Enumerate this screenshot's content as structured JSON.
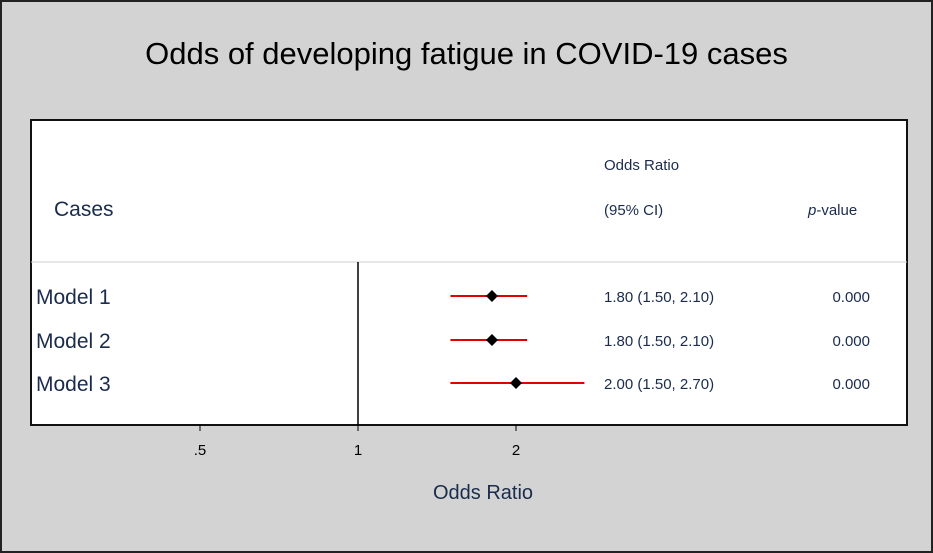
{
  "chart_data": {
    "type": "forest",
    "title": "Odds of developing fatigue in COVID-19 cases",
    "xlabel": "Odds Ratio",
    "x_scale": "log",
    "xlim": [
      0.3,
      2.6
    ],
    "reference_line": 1,
    "x_ticks": [
      {
        "value": 0.5,
        "label": ".5"
      },
      {
        "value": 1,
        "label": "1"
      },
      {
        "value": 2,
        "label": "2"
      }
    ],
    "headers": {
      "study": "Cases",
      "or_line1": "Odds Ratio",
      "or_line2": "(95% CI)",
      "p_italic": "p",
      "p_rest": "-value"
    },
    "rows": [
      {
        "label": "Model 1",
        "or": 1.8,
        "lo": 1.5,
        "hi": 2.1,
        "or_text": "1.80 (1.50, 2.10)",
        "p_text": "0.000"
      },
      {
        "label": "Model 2",
        "or": 1.8,
        "lo": 1.5,
        "hi": 2.1,
        "or_text": "1.80 (1.50, 2.10)",
        "p_text": "0.000"
      },
      {
        "label": "Model 3",
        "or": 2.0,
        "lo": 1.5,
        "hi": 2.7,
        "or_text": "2.00 (1.50, 2.70)",
        "p_text": "0.000"
      }
    ],
    "colors": {
      "ci_line": "#e00000",
      "marker": "#000000",
      "text": "#1a2b4c"
    }
  }
}
